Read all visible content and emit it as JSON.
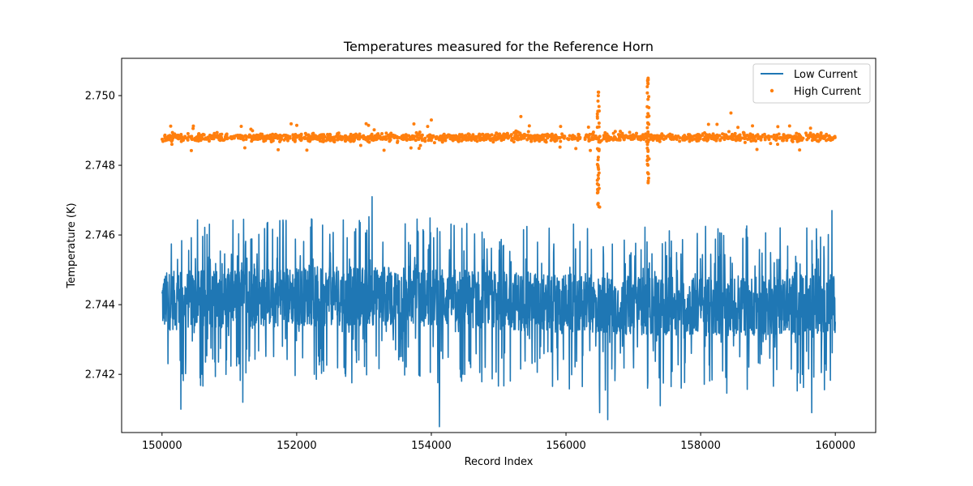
{
  "chart_data": {
    "type": "line+scatter",
    "title": "Temperatures measured for the Reference Horn",
    "xlabel": "Record Index",
    "ylabel": "Temperature (K)",
    "xlim": [
      149400,
      160600
    ],
    "ylim": [
      2.74033,
      2.75107
    ],
    "xticks": [
      150000,
      152000,
      154000,
      156000,
      158000,
      160000
    ],
    "xtick_labels": [
      "150000",
      "152000",
      "154000",
      "156000",
      "158000",
      "160000"
    ],
    "yticks": [
      2.742,
      2.744,
      2.746,
      2.748,
      2.75
    ],
    "ytick_labels": [
      "2.742",
      "2.744",
      "2.746",
      "2.748",
      "2.750"
    ],
    "grid": false,
    "legend_position": "top-right",
    "x_range": [
      150000,
      160000
    ],
    "series": [
      {
        "name": "Low Current",
        "kind": "line",
        "color": "#1f77b4",
        "approx_mean": 2.7441,
        "approx_band": [
          2.7433,
          2.745
        ],
        "notable_spikes": [
          {
            "x": 153120,
            "y": 2.7471
          },
          {
            "x": 159950,
            "y": 2.7467
          },
          {
            "x": 150280,
            "y": 2.741
          },
          {
            "x": 154120,
            "y": 2.7405
          },
          {
            "x": 156500,
            "y": 2.7409
          },
          {
            "x": 156620,
            "y": 2.7407
          },
          {
            "x": 159650,
            "y": 2.7409
          },
          {
            "x": 151200,
            "y": 2.7412
          },
          {
            "x": 157400,
            "y": 2.7411
          }
        ]
      },
      {
        "name": "High Current",
        "kind": "scatter",
        "color": "#ff7f0e",
        "approx_mean": 2.7488,
        "approx_band": [
          2.7486,
          2.749
        ],
        "notable_outliers": [
          {
            "x": 156480,
            "y": 2.7501
          },
          {
            "x": 156500,
            "y": 2.7468
          },
          {
            "x": 157220,
            "y": 2.7505
          },
          {
            "x": 157220,
            "y": 2.7475
          },
          {
            "x": 158450,
            "y": 2.7495
          },
          {
            "x": 155330,
            "y": 2.7494
          },
          {
            "x": 154000,
            "y": 2.7493
          },
          {
            "x": 151230,
            "y": 2.7485
          }
        ]
      }
    ]
  }
}
